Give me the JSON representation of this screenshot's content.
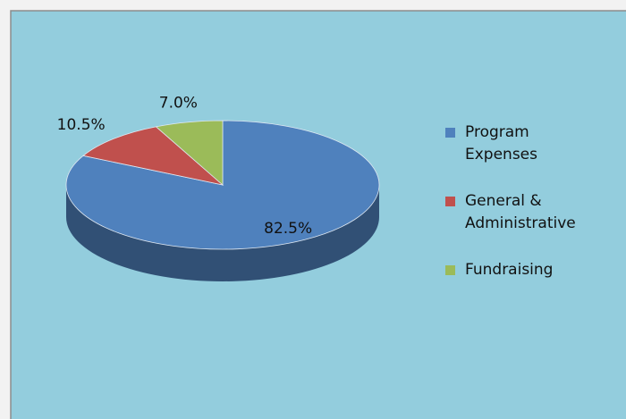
{
  "chart_data": {
    "type": "pie",
    "categories": [
      "Program Expenses",
      "General & Administrative",
      "Fundraising"
    ],
    "values": [
      82.5,
      10.5,
      7.0
    ],
    "value_labels": [
      "82.5%",
      "10.5%",
      "7.0%"
    ],
    "colors": [
      "#4f81bd",
      "#c0504d",
      "#9bbb59"
    ],
    "legend": "right"
  }
}
